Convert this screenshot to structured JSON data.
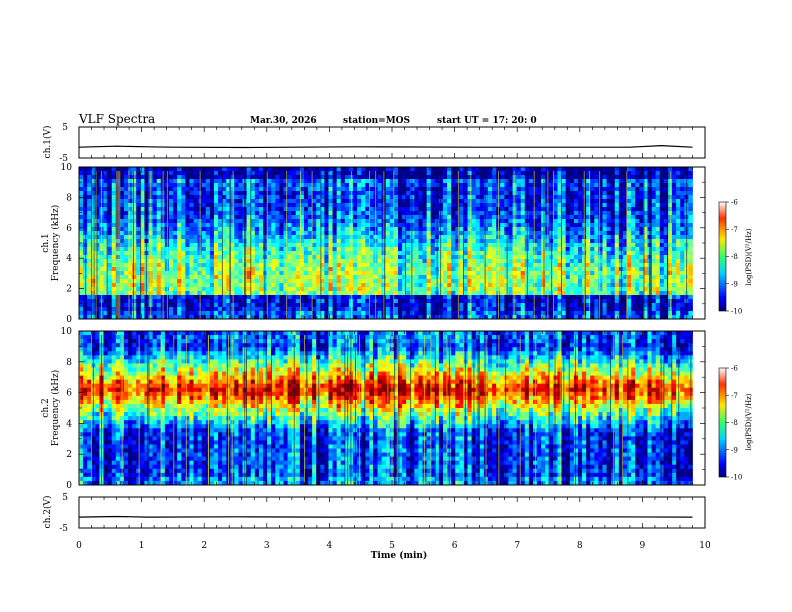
{
  "header": {
    "title": "VLF Spectra",
    "date": "Mar.30, 2026",
    "station": "station=MOS",
    "start": "start  UT =   17: 20: 0"
  },
  "chart_data": [
    {
      "type": "line",
      "ylabel": "ch.1(V)",
      "ylim": [
        -5,
        5
      ],
      "y_ticks": [
        "5",
        "-5"
      ],
      "series": [
        {
          "x": [
            0,
            0.6,
            1.1,
            1.5,
            2.7,
            4.4,
            6.3,
            8.8,
            9.3,
            9.8
          ],
          "values": [
            -1.5,
            -1.2,
            -1.4,
            -1.5,
            -1.6,
            -1.4,
            -1.5,
            -1.5,
            -1.0,
            -1.5
          ]
        }
      ]
    },
    {
      "type": "heatmap",
      "ylabel_line1": "ch.1",
      "ylabel_line2": "Frequency (kHz)",
      "ylim": [
        0,
        10
      ],
      "xlim": [
        0,
        10
      ],
      "data_end_min": 9.8,
      "y_ticks": [
        "0",
        "2",
        "4",
        "6",
        "8",
        "10"
      ],
      "colorbar": {
        "label": "log(PSD)(V²/Hz)",
        "ticks": [
          "-6",
          "-7",
          "-8",
          "-9",
          "-10"
        ],
        "range": [
          -10,
          -6
        ]
      }
    },
    {
      "type": "heatmap",
      "ylabel_line1": "ch.2",
      "ylabel_line2": "Frequency (kHz)",
      "ylim": [
        0,
        10
      ],
      "xlim": [
        0,
        10
      ],
      "data_end_min": 9.8,
      "y_ticks": [
        "0",
        "2",
        "4",
        "6",
        "8",
        "10"
      ],
      "colorbar": {
        "label": "log(PSD)(V²/Hz)",
        "ticks": [
          "-6",
          "-7",
          "-8",
          "-9",
          "-10"
        ],
        "range": [
          -10,
          -6
        ]
      }
    },
    {
      "type": "line",
      "ylabel": "ch.2(V)",
      "ylim": [
        -5,
        5
      ],
      "y_ticks": [
        "5",
        "-5"
      ],
      "xlabel": "Time  (min)",
      "x_ticks": [
        "0",
        "1",
        "2",
        "3",
        "4",
        "5",
        "6",
        "7",
        "8",
        "9",
        "10"
      ],
      "series": [
        {
          "x": [
            0,
            0.6,
            1.1,
            2.5,
            4.1,
            5.0,
            6.5,
            8.0,
            9.8
          ],
          "values": [
            -1.5,
            -1.3,
            -1.5,
            -1.4,
            -1.5,
            -1.3,
            -1.5,
            -1.4,
            -1.5
          ]
        }
      ]
    }
  ]
}
